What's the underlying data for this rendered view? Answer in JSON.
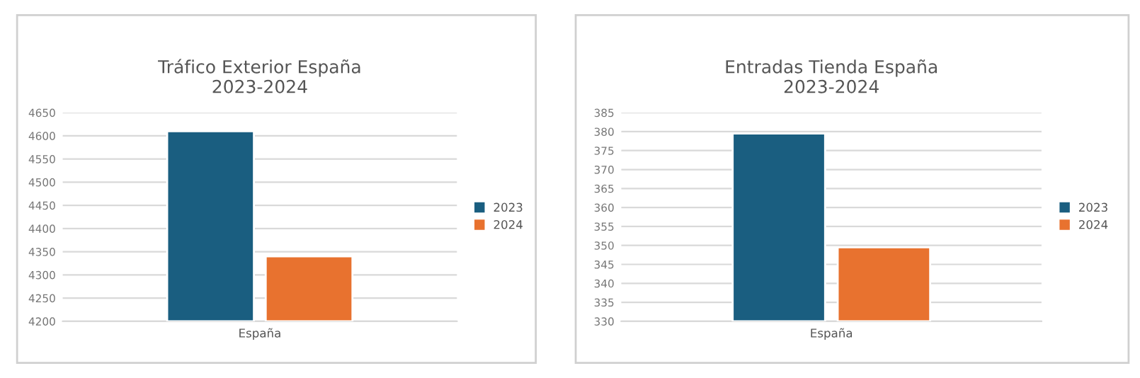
{
  "chart_data": [
    {
      "type": "bar",
      "title": "Tráfico Exterior España\n2023-2024",
      "categories": [
        "España"
      ],
      "series": [
        {
          "name": "2023",
          "color": "#1a5e80",
          "values": [
            4610
          ]
        },
        {
          "name": "2024",
          "color": "#e8722f",
          "values": [
            4340
          ]
        }
      ],
      "ylim": [
        4200,
        4650
      ],
      "yticks": [
        4200,
        4250,
        4300,
        4350,
        4400,
        4450,
        4500,
        4550,
        4600,
        4650
      ],
      "grid": "y",
      "legend": "right"
    },
    {
      "type": "bar",
      "title": "Entradas Tienda España\n2023-2024",
      "categories": [
        "España"
      ],
      "series": [
        {
          "name": "2023",
          "color": "#1a5e80",
          "values": [
            379.5
          ]
        },
        {
          "name": "2024",
          "color": "#e8722f",
          "values": [
            349.5
          ]
        }
      ],
      "ylim": [
        330,
        385
      ],
      "yticks": [
        330,
        335,
        340,
        345,
        350,
        355,
        360,
        365,
        370,
        375,
        380,
        385
      ],
      "grid": "y",
      "legend": "right"
    }
  ]
}
